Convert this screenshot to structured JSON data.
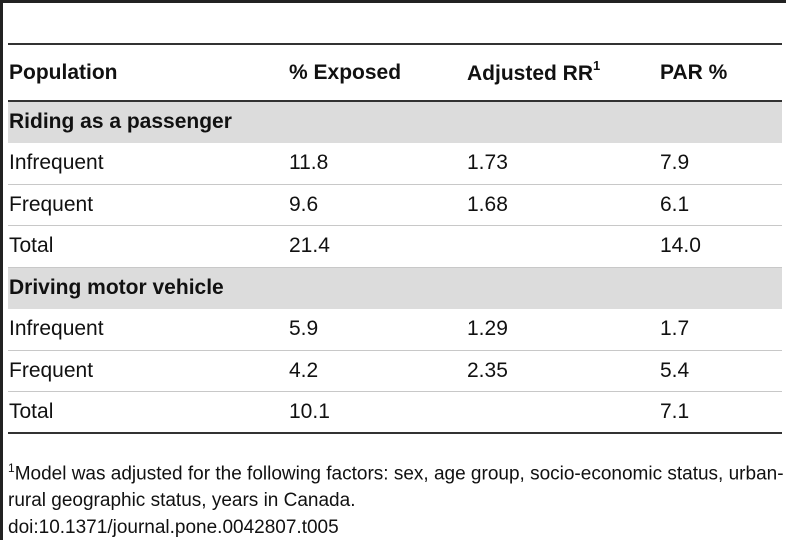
{
  "table": {
    "headers": {
      "population": "Population",
      "exposed": "% Exposed",
      "rr": "Adjusted RR",
      "rr_sup": "1",
      "par": "PAR %"
    },
    "section1": {
      "title": "Riding as a passenger",
      "rows": [
        {
          "population": "Infrequent",
          "exposed": "11.8",
          "rr": "1.73",
          "par": "7.9"
        },
        {
          "population": "Frequent",
          "exposed": "9.6",
          "rr": "1.68",
          "par": "6.1"
        },
        {
          "population": "Total",
          "exposed": "21.4",
          "rr": "",
          "par": "14.0"
        }
      ]
    },
    "section2": {
      "title": "Driving motor vehicle",
      "rows": [
        {
          "population": "Infrequent",
          "exposed": "5.9",
          "rr": "1.29",
          "par": "1.7"
        },
        {
          "population": "Frequent",
          "exposed": "4.2",
          "rr": "2.35",
          "par": "5.4"
        },
        {
          "population": "Total",
          "exposed": "10.1",
          "rr": "",
          "par": "7.1"
        }
      ]
    }
  },
  "footnote": {
    "marker": "1",
    "text": "Model was adjusted for the following factors: sex, age group, socio-economic status, urban-rural geographic status, years in Canada.",
    "doi": "doi:10.1371/journal.pone.0042807.t005"
  }
}
